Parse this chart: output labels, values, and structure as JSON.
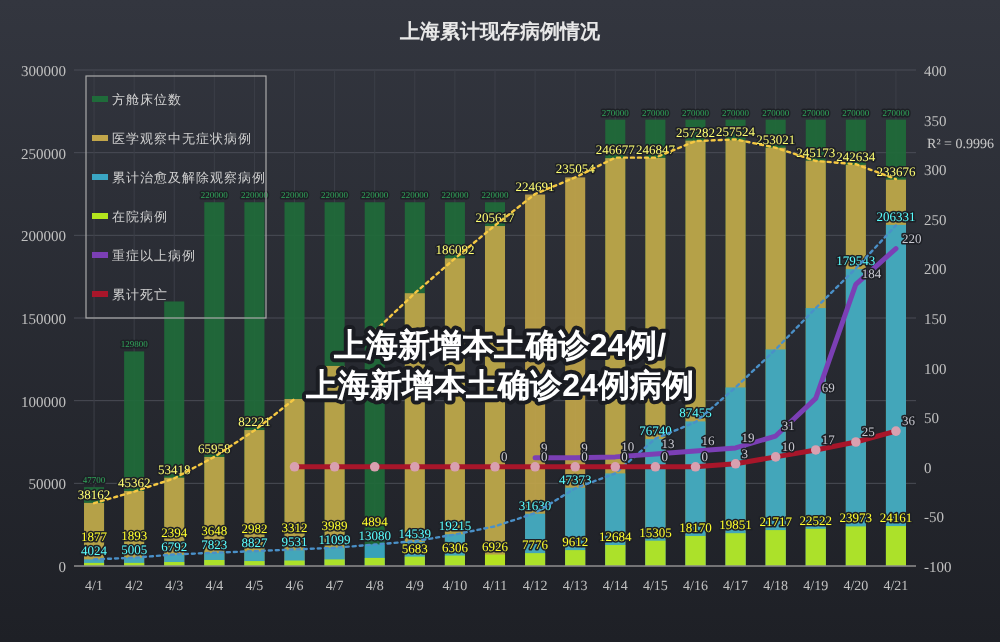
{
  "chart_data": {
    "type": "bar",
    "title": "上海累计现存病例情况",
    "categories": [
      "4/1",
      "4/2",
      "4/3",
      "4/4",
      "4/5",
      "4/6",
      "4/7",
      "4/8",
      "4/9",
      "4/10",
      "4/11",
      "4/12",
      "4/13",
      "4/14",
      "4/15",
      "4/16",
      "4/17",
      "4/18",
      "4/19",
      "4/20",
      "4/21"
    ],
    "series": [
      {
        "name": "方舱床位数",
        "color": "#1f6b3a",
        "values": [
          47700,
          129800,
          160000,
          220000,
          220000,
          220000,
          220000,
          220000,
          220000,
          220000,
          220000,
          null,
          null,
          270000,
          270000,
          270000,
          270000,
          270000,
          270000,
          270000,
          270000
        ],
        "value_labels": [
          "47700",
          "129800",
          null,
          "220000",
          "220000",
          "220000",
          "220000",
          "220000",
          "220000",
          "220000",
          "220000",
          null,
          null,
          "270000",
          "270000",
          "270000",
          "270000",
          "270000",
          "270000",
          "270000",
          "270000"
        ]
      },
      {
        "name": "医学观察中无症状病例",
        "color": "#c2a64a",
        "values": [
          38162,
          45362,
          53418,
          65958,
          82221,
          101000,
          121000,
          null,
          165000,
          186092,
          205617,
          224691,
          235054,
          246677,
          246847,
          257282,
          257524,
          253021,
          245173,
          242634,
          233676
        ],
        "value_labels": [
          "38162",
          "45362",
          "53418",
          "65958",
          "82221",
          null,
          null,
          null,
          null,
          "186092",
          "205617",
          "224691",
          "235054",
          "246677",
          "246847",
          "257282",
          "257524",
          "253021",
          "245173",
          "242634",
          "233676"
        ]
      },
      {
        "name": "累计治愈及解除观察病例",
        "color": "#3aa6c4",
        "values": [
          4024,
          5005,
          6792,
          7823,
          8827,
          9531,
          11099,
          13080,
          14539,
          19215,
          null,
          31630,
          47373,
          56000,
          76740,
          87455,
          108000,
          131000,
          156000,
          179543,
          206331
        ],
        "value_labels": [
          "4024",
          "5005",
          "6792",
          "7823",
          "8827",
          "9531",
          "11099",
          "13080",
          "14539",
          "19215",
          null,
          "31630",
          "47373",
          null,
          "76740",
          "87455",
          null,
          null,
          null,
          "179543",
          "206331"
        ]
      },
      {
        "name": "在院病例",
        "color": "#b5e61d",
        "values": [
          1877,
          1893,
          2394,
          3648,
          2982,
          3312,
          3989,
          4894,
          5683,
          6306,
          6926,
          7776,
          9612,
          12684,
          15305,
          18170,
          19851,
          21717,
          22522,
          23973,
          24161
        ],
        "value_labels": [
          "1877",
          "1893",
          "2394",
          "3648",
          "2982",
          "3312",
          "3989",
          "4894",
          "5683",
          "6306",
          "6926",
          "7776",
          "9612",
          "12684",
          "15305",
          "18170",
          "19851",
          "21717",
          "22522",
          "23973",
          "24161"
        ]
      },
      {
        "type": "line",
        "line_style": "dotted",
        "color": "#f5c842",
        "values": [
          38000,
          45000,
          53000,
          66000,
          82000,
          101000,
          null,
          142000,
          165000,
          186000,
          206000,
          225000,
          235000,
          247000,
          247000,
          257000,
          258000,
          253000,
          245000,
          243000,
          234000
        ]
      },
      {
        "type": "line",
        "line_style": "dotted",
        "color": "#4a90c8",
        "values": [
          4000,
          5000,
          7000,
          8000,
          9000,
          10000,
          11000,
          13000,
          15000,
          19000,
          24000,
          32000,
          47000,
          56000,
          77000,
          87000,
          108000,
          131000,
          156000,
          180000,
          206000
        ]
      },
      {
        "type": "line",
        "axis": "y2",
        "name": "重症以上病例",
        "color": "#7b3fb5",
        "values": [
          null,
          null,
          null,
          null,
          null,
          null,
          null,
          null,
          null,
          null,
          null,
          9,
          9,
          10,
          13,
          16,
          19,
          31,
          69,
          184,
          220
        ],
        "value_labels": [
          null,
          null,
          null,
          null,
          null,
          null,
          null,
          null,
          null,
          null,
          null,
          "9",
          "9",
          "10",
          "13",
          "16",
          "19",
          "31",
          "69",
          "184",
          "220"
        ]
      },
      {
        "type": "line",
        "axis": "y2",
        "name": "累计死亡",
        "color": "#a8162a",
        "marker": "circle",
        "values": [
          null,
          null,
          null,
          null,
          null,
          0,
          0,
          0,
          0,
          0,
          0,
          0,
          0,
          0,
          0,
          0,
          3,
          10,
          17,
          25,
          36
        ],
        "value_labels": [
          null,
          null,
          null,
          null,
          null,
          null,
          null,
          null,
          null,
          null,
          "0",
          "0",
          "0",
          "0",
          "0",
          "0",
          "3",
          "10",
          "17",
          "25",
          "36"
        ]
      }
    ],
    "ylim": [
      0,
      300000
    ],
    "yticks": [
      0,
      50000,
      100000,
      150000,
      200000,
      250000,
      300000
    ],
    "y2lim": [
      -100,
      400
    ],
    "y2ticks": [
      -100,
      -50,
      0,
      50,
      100,
      150,
      200,
      250,
      300,
      350,
      400
    ],
    "grid": true,
    "legend": "top left",
    "annotations": [
      "上海新增本土确诊24例/上海新增本土确诊24例病例",
      "R² = 0.9996"
    ]
  }
}
